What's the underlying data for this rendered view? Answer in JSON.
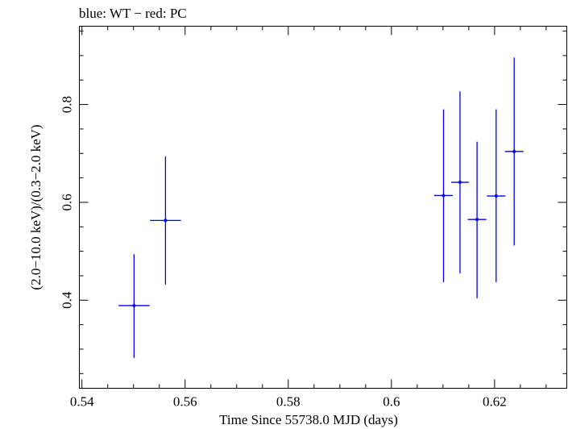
{
  "chart_data": {
    "type": "scatter",
    "title": "blue: WT − red: PC",
    "xlabel": "Time Since 55738.0 MJD (days)",
    "ylabel": "(2.0−10.0 keV)/(0.3−2.0 keV)",
    "xlim": [
      0.5395,
      0.634
    ],
    "ylim": [
      0.22,
      0.96
    ],
    "x_ticks": [
      {
        "value": 0.54,
        "label": "0.54"
      },
      {
        "value": 0.56,
        "label": "0.56"
      },
      {
        "value": 0.58,
        "label": "0.58"
      },
      {
        "value": 0.6,
        "label": "0.6"
      },
      {
        "value": 0.62,
        "label": "0.62"
      }
    ],
    "y_ticks": [
      {
        "value": 0.4,
        "label": "0.4"
      },
      {
        "value": 0.6,
        "label": "0.6"
      },
      {
        "value": 0.8,
        "label": "0.8"
      }
    ],
    "x_minor_step": 0.005,
    "y_minor_step": 0.05,
    "grid": false,
    "series": [
      {
        "color": "#0000ee",
        "points": [
          {
            "x": 0.5501,
            "xerr": 0.003,
            "y": 0.389,
            "y_low": 0.282,
            "y_high": 0.494
          },
          {
            "x": 0.5562,
            "xerr": 0.003,
            "y": 0.563,
            "y_low": 0.432,
            "y_high": 0.694
          },
          {
            "x": 0.6101,
            "xerr": 0.0018,
            "y": 0.614,
            "y_low": 0.437,
            "y_high": 0.79
          },
          {
            "x": 0.6133,
            "xerr": 0.0017,
            "y": 0.641,
            "y_low": 0.455,
            "y_high": 0.827
          },
          {
            "x": 0.6166,
            "xerr": 0.0018,
            "y": 0.565,
            "y_low": 0.404,
            "y_high": 0.724
          },
          {
            "x": 0.6203,
            "xerr": 0.0018,
            "y": 0.613,
            "y_low": 0.437,
            "y_high": 0.79
          },
          {
            "x": 0.6238,
            "xerr": 0.0018,
            "y": 0.704,
            "y_low": 0.512,
            "y_high": 0.896
          }
        ]
      }
    ]
  }
}
